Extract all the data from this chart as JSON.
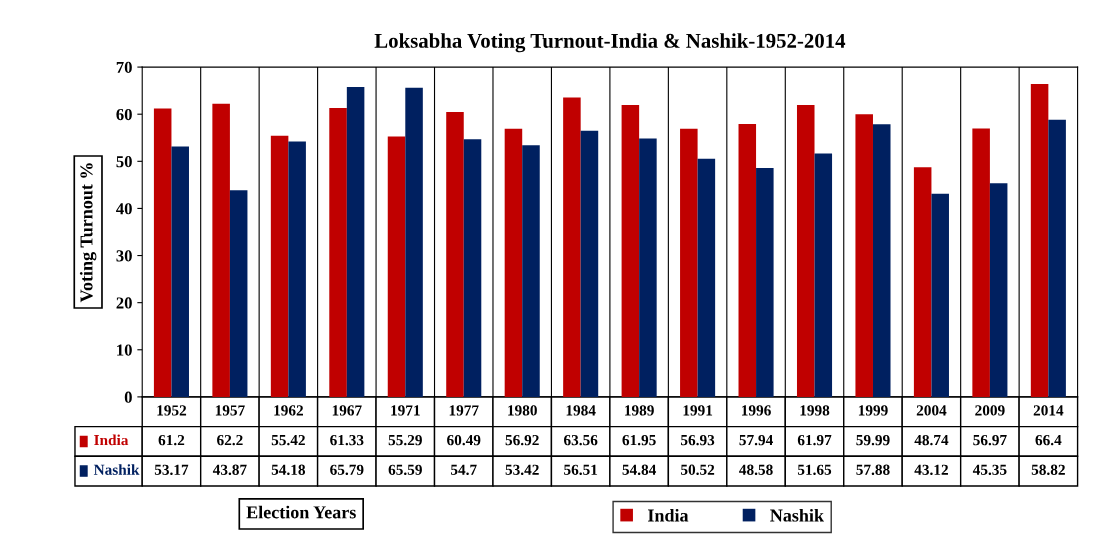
{
  "chart_data": {
    "type": "bar",
    "title": "Loksabha Voting Turnout-India & Nashik-1952-2014",
    "categories": [
      "1952",
      "1957",
      "1962",
      "1967",
      "1971",
      "1977",
      "1980",
      "1984",
      "1989",
      "1991",
      "1996",
      "1998",
      "1999",
      "2004",
      "2009",
      "2014"
    ],
    "series": [
      {
        "name": "India",
        "color": "#c00000",
        "values": [
          61.2,
          62.2,
          55.42,
          61.33,
          55.29,
          60.49,
          56.92,
          63.56,
          61.95,
          56.93,
          57.94,
          61.97,
          59.99,
          48.74,
          56.97,
          66.4
        ]
      },
      {
        "name": "Nashik",
        "color": "#002060",
        "values": [
          53.17,
          43.87,
          54.18,
          65.79,
          65.59,
          54.7,
          53.42,
          56.51,
          54.84,
          50.52,
          48.58,
          51.65,
          57.88,
          43.12,
          45.35,
          58.82
        ]
      }
    ],
    "ylim": [
      0,
      70
    ],
    "yticks": [
      0,
      10,
      20,
      30,
      40,
      50,
      60,
      70
    ],
    "xlabel": "Election Years",
    "ylabel": "Voting Turnout %",
    "data_labels": true,
    "grid": false,
    "legend": "bottom"
  }
}
